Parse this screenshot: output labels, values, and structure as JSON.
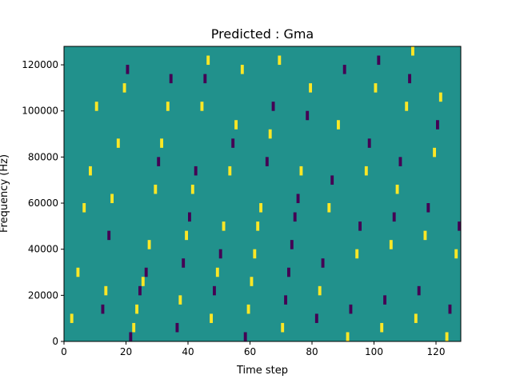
{
  "chart_data": {
    "type": "heatmap",
    "title": "Predicted : Gma",
    "xlabel": "Time step",
    "ylabel": "Frequency (Hz)",
    "xlim": [
      0,
      128
    ],
    "ylim": [
      0,
      128000
    ],
    "x_ticks": [
      0,
      20,
      40,
      60,
      80,
      100,
      120
    ],
    "y_ticks": [
      0,
      20000,
      40000,
      60000,
      80000,
      100000,
      120000
    ],
    "grid": false,
    "colormap": "viridis",
    "values_legend": {
      "low": -1,
      "mid": 0,
      "high": 1
    },
    "colors": {
      "low": "#440154",
      "mid": "#21918c",
      "high": "#fde725"
    },
    "background_value": 0,
    "notes_on_cells": "Each cell: [time_step, frequency_bin_start_Hz, value]. Frequency bins are 4000 Hz tall (32 bins).",
    "cells": [
      [
        1,
        0,
        0
      ],
      [
        2,
        8000,
        1
      ],
      [
        3,
        20000,
        0
      ],
      [
        4,
        28000,
        1
      ],
      [
        5,
        36000,
        0
      ],
      [
        6,
        56000,
        1
      ],
      [
        7,
        64000,
        0
      ],
      [
        8,
        72000,
        1
      ],
      [
        9,
        80000,
        0
      ],
      [
        10,
        100000,
        1
      ],
      [
        11,
        104000,
        0
      ],
      [
        12,
        12000,
        -1
      ],
      [
        13,
        20000,
        1
      ],
      [
        14,
        44000,
        -1
      ],
      [
        15,
        60000,
        1
      ],
      [
        16,
        72000,
        0
      ],
      [
        17,
        84000,
        1
      ],
      [
        18,
        92000,
        0
      ],
      [
        19,
        108000,
        1
      ],
      [
        20,
        116000,
        -1
      ],
      [
        21,
        0,
        -1
      ],
      [
        22,
        4000,
        1
      ],
      [
        23,
        12000,
        1
      ],
      [
        24,
        20000,
        -1
      ],
      [
        25,
        24000,
        1
      ],
      [
        26,
        28000,
        -1
      ],
      [
        27,
        40000,
        1
      ],
      [
        28,
        52000,
        0
      ],
      [
        29,
        64000,
        1
      ],
      [
        30,
        76000,
        -1
      ],
      [
        31,
        84000,
        1
      ],
      [
        32,
        92000,
        0
      ],
      [
        33,
        100000,
        1
      ],
      [
        34,
        112000,
        -1
      ],
      [
        35,
        120000,
        0
      ],
      [
        36,
        4000,
        -1
      ],
      [
        37,
        16000,
        1
      ],
      [
        38,
        32000,
        -1
      ],
      [
        39,
        44000,
        1
      ],
      [
        40,
        52000,
        -1
      ],
      [
        41,
        64000,
        1
      ],
      [
        42,
        72000,
        -1
      ],
      [
        43,
        88000,
        0
      ],
      [
        44,
        100000,
        1
      ],
      [
        45,
        112000,
        -1
      ],
      [
        46,
        120000,
        1
      ],
      [
        47,
        8000,
        1
      ],
      [
        48,
        20000,
        -1
      ],
      [
        49,
        28000,
        1
      ],
      [
        50,
        36000,
        -1
      ],
      [
        51,
        48000,
        1
      ],
      [
        52,
        60000,
        0
      ],
      [
        53,
        72000,
        1
      ],
      [
        54,
        84000,
        -1
      ],
      [
        55,
        92000,
        1
      ],
      [
        56,
        104000,
        0
      ],
      [
        57,
        116000,
        1
      ],
      [
        58,
        0,
        -1
      ],
      [
        59,
        12000,
        1
      ],
      [
        60,
        24000,
        1
      ],
      [
        61,
        36000,
        1
      ],
      [
        62,
        48000,
        1
      ],
      [
        63,
        56000,
        1
      ],
      [
        64,
        68000,
        0
      ],
      [
        65,
        76000,
        -1
      ],
      [
        66,
        88000,
        1
      ],
      [
        67,
        100000,
        -1
      ],
      [
        68,
        112000,
        0
      ],
      [
        69,
        120000,
        1
      ],
      [
        70,
        4000,
        1
      ],
      [
        71,
        16000,
        -1
      ],
      [
        72,
        28000,
        -1
      ],
      [
        73,
        40000,
        -1
      ],
      [
        74,
        52000,
        -1
      ],
      [
        75,
        60000,
        -1
      ],
      [
        76,
        72000,
        1
      ],
      [
        77,
        84000,
        0
      ],
      [
        78,
        96000,
        -1
      ],
      [
        79,
        108000,
        1
      ],
      [
        80,
        120000,
        0
      ],
      [
        81,
        8000,
        -1
      ],
      [
        82,
        20000,
        1
      ],
      [
        83,
        32000,
        -1
      ],
      [
        84,
        44000,
        0
      ],
      [
        85,
        56000,
        1
      ],
      [
        86,
        68000,
        -1
      ],
      [
        87,
        80000,
        0
      ],
      [
        88,
        92000,
        1
      ],
      [
        89,
        104000,
        0
      ],
      [
        90,
        116000,
        -1
      ],
      [
        91,
        0,
        1
      ],
      [
        92,
        12000,
        -1
      ],
      [
        93,
        24000,
        0
      ],
      [
        94,
        36000,
        1
      ],
      [
        95,
        48000,
        -1
      ],
      [
        96,
        60000,
        0
      ],
      [
        97,
        72000,
        1
      ],
      [
        98,
        84000,
        -1
      ],
      [
        99,
        96000,
        0
      ],
      [
        100,
        108000,
        1
      ],
      [
        101,
        120000,
        -1
      ],
      [
        102,
        4000,
        1
      ],
      [
        103,
        16000,
        -1
      ],
      [
        104,
        28000,
        0
      ],
      [
        105,
        40000,
        1
      ],
      [
        106,
        52000,
        -1
      ],
      [
        107,
        64000,
        1
      ],
      [
        108,
        76000,
        -1
      ],
      [
        109,
        88000,
        0
      ],
      [
        110,
        100000,
        1
      ],
      [
        111,
        112000,
        -1
      ],
      [
        112,
        124000,
        1
      ],
      [
        113,
        8000,
        1
      ],
      [
        114,
        20000,
        -1
      ],
      [
        115,
        32000,
        0
      ],
      [
        116,
        44000,
        1
      ],
      [
        117,
        56000,
        -1
      ],
      [
        118,
        68000,
        0
      ],
      [
        119,
        80000,
        1
      ],
      [
        120,
        92000,
        -1
      ],
      [
        121,
        104000,
        1
      ],
      [
        122,
        116000,
        0
      ],
      [
        123,
        0,
        1
      ],
      [
        124,
        12000,
        -1
      ],
      [
        125,
        24000,
        0
      ],
      [
        126,
        36000,
        1
      ],
      [
        127,
        48000,
        -1
      ],
      [
        128,
        60000,
        0
      ]
    ]
  }
}
